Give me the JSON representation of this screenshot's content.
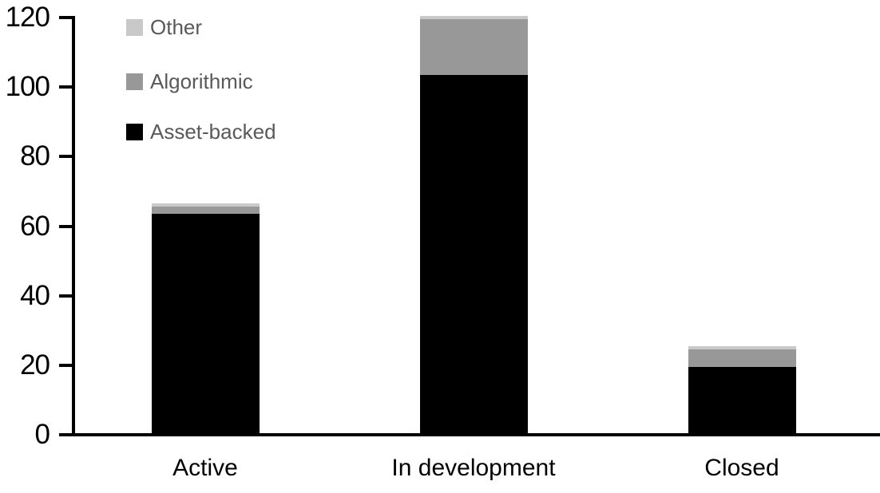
{
  "chart_data": {
    "type": "bar",
    "stacked": true,
    "title": "",
    "xlabel": "",
    "ylabel": "",
    "categories": [
      "Active",
      "In development",
      "Closed"
    ],
    "series": [
      {
        "name": "Asset-backed",
        "color": "#000000",
        "values": [
          63,
          103,
          19
        ]
      },
      {
        "name": "Algorithmic",
        "color": "#989898",
        "values": [
          2,
          16,
          5
        ]
      },
      {
        "name": "Other",
        "color": "#c9c9c9",
        "values": [
          1,
          1,
          1
        ]
      }
    ],
    "ylim": [
      0,
      120
    ],
    "yticks": [
      0,
      20,
      40,
      60,
      80,
      100,
      120
    ],
    "grid": false,
    "legend_position": "top-left",
    "legend_order": [
      "Other",
      "Algorithmic",
      "Asset-backed"
    ]
  },
  "colors": {
    "background": "#ffffff",
    "axis": "#000000",
    "axis_label_text": "#000000",
    "category_label_text": "#000000",
    "legend_text": "#595959"
  }
}
